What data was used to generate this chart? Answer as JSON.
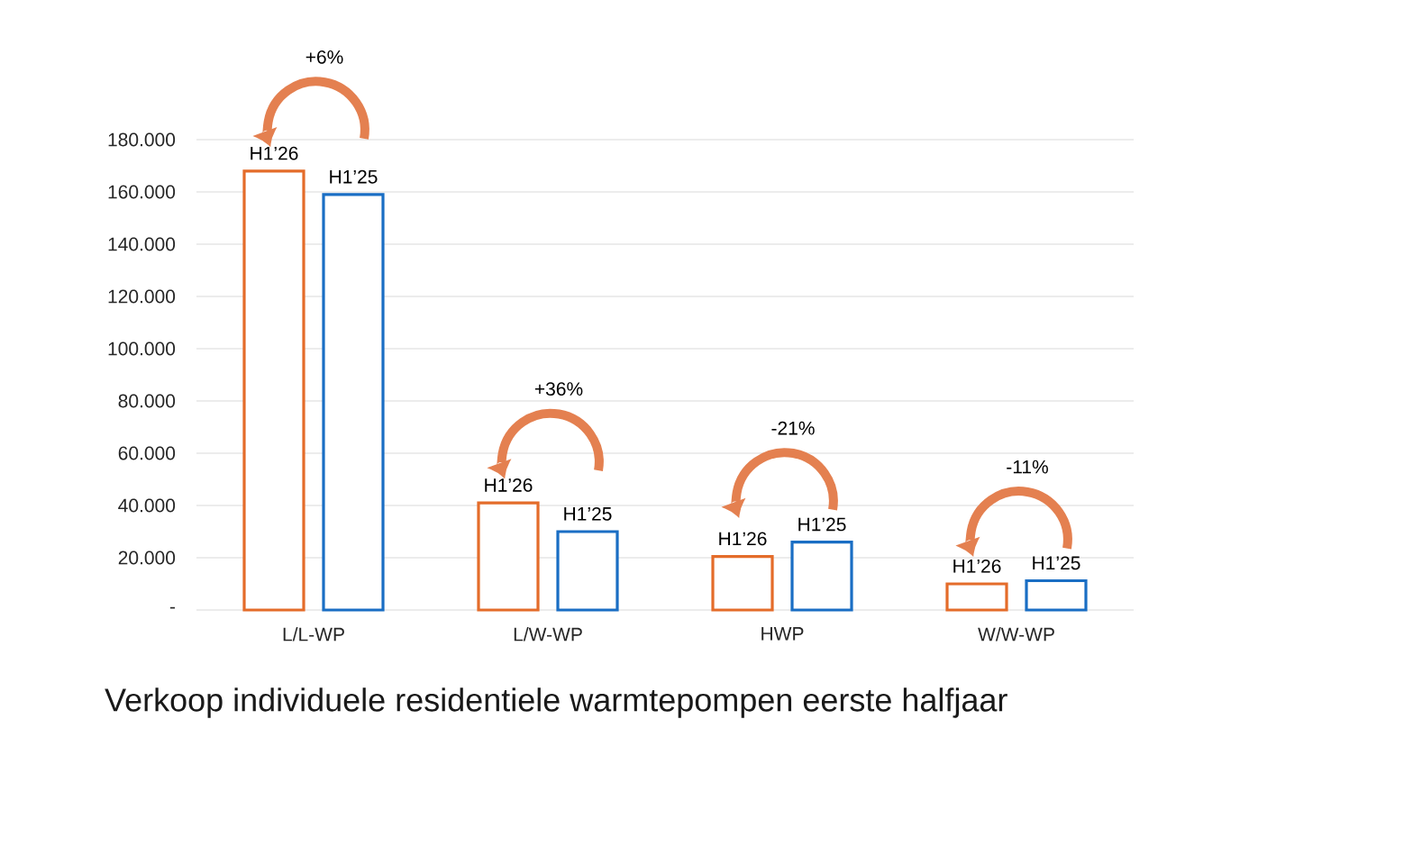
{
  "chart_data": {
    "type": "bar",
    "title": "Verkoop individuele residentiele warmtepompen eerste halfjaar",
    "categories": [
      "L/L-WP",
      "L/W-WP",
      "HWP",
      "W/W-WP"
    ],
    "series": [
      {
        "name": "H1’26",
        "color": "#e46c2a",
        "values": [
          168000,
          41000,
          20500,
          10000
        ]
      },
      {
        "name": "H1’25",
        "color": "#1a6ec4",
        "values": [
          159000,
          30000,
          26000,
          11200
        ]
      }
    ],
    "ylim": [
      0,
      180000
    ],
    "yticks": [
      {
        "value": 0,
        "label": "-"
      },
      {
        "value": 20000,
        "label": "20.000"
      },
      {
        "value": 40000,
        "label": "40.000"
      },
      {
        "value": 60000,
        "label": "60.000"
      },
      {
        "value": 80000,
        "label": "80.000"
      },
      {
        "value": 100000,
        "label": "100.000"
      },
      {
        "value": 120000,
        "label": "120.000"
      },
      {
        "value": 140000,
        "label": "140.000"
      },
      {
        "value": 160000,
        "label": "160.000"
      },
      {
        "value": 180000,
        "label": "180.000"
      }
    ],
    "grid": "y",
    "annotations": [
      "+6%",
      "+36%",
      "-21%",
      "-11%"
    ]
  }
}
